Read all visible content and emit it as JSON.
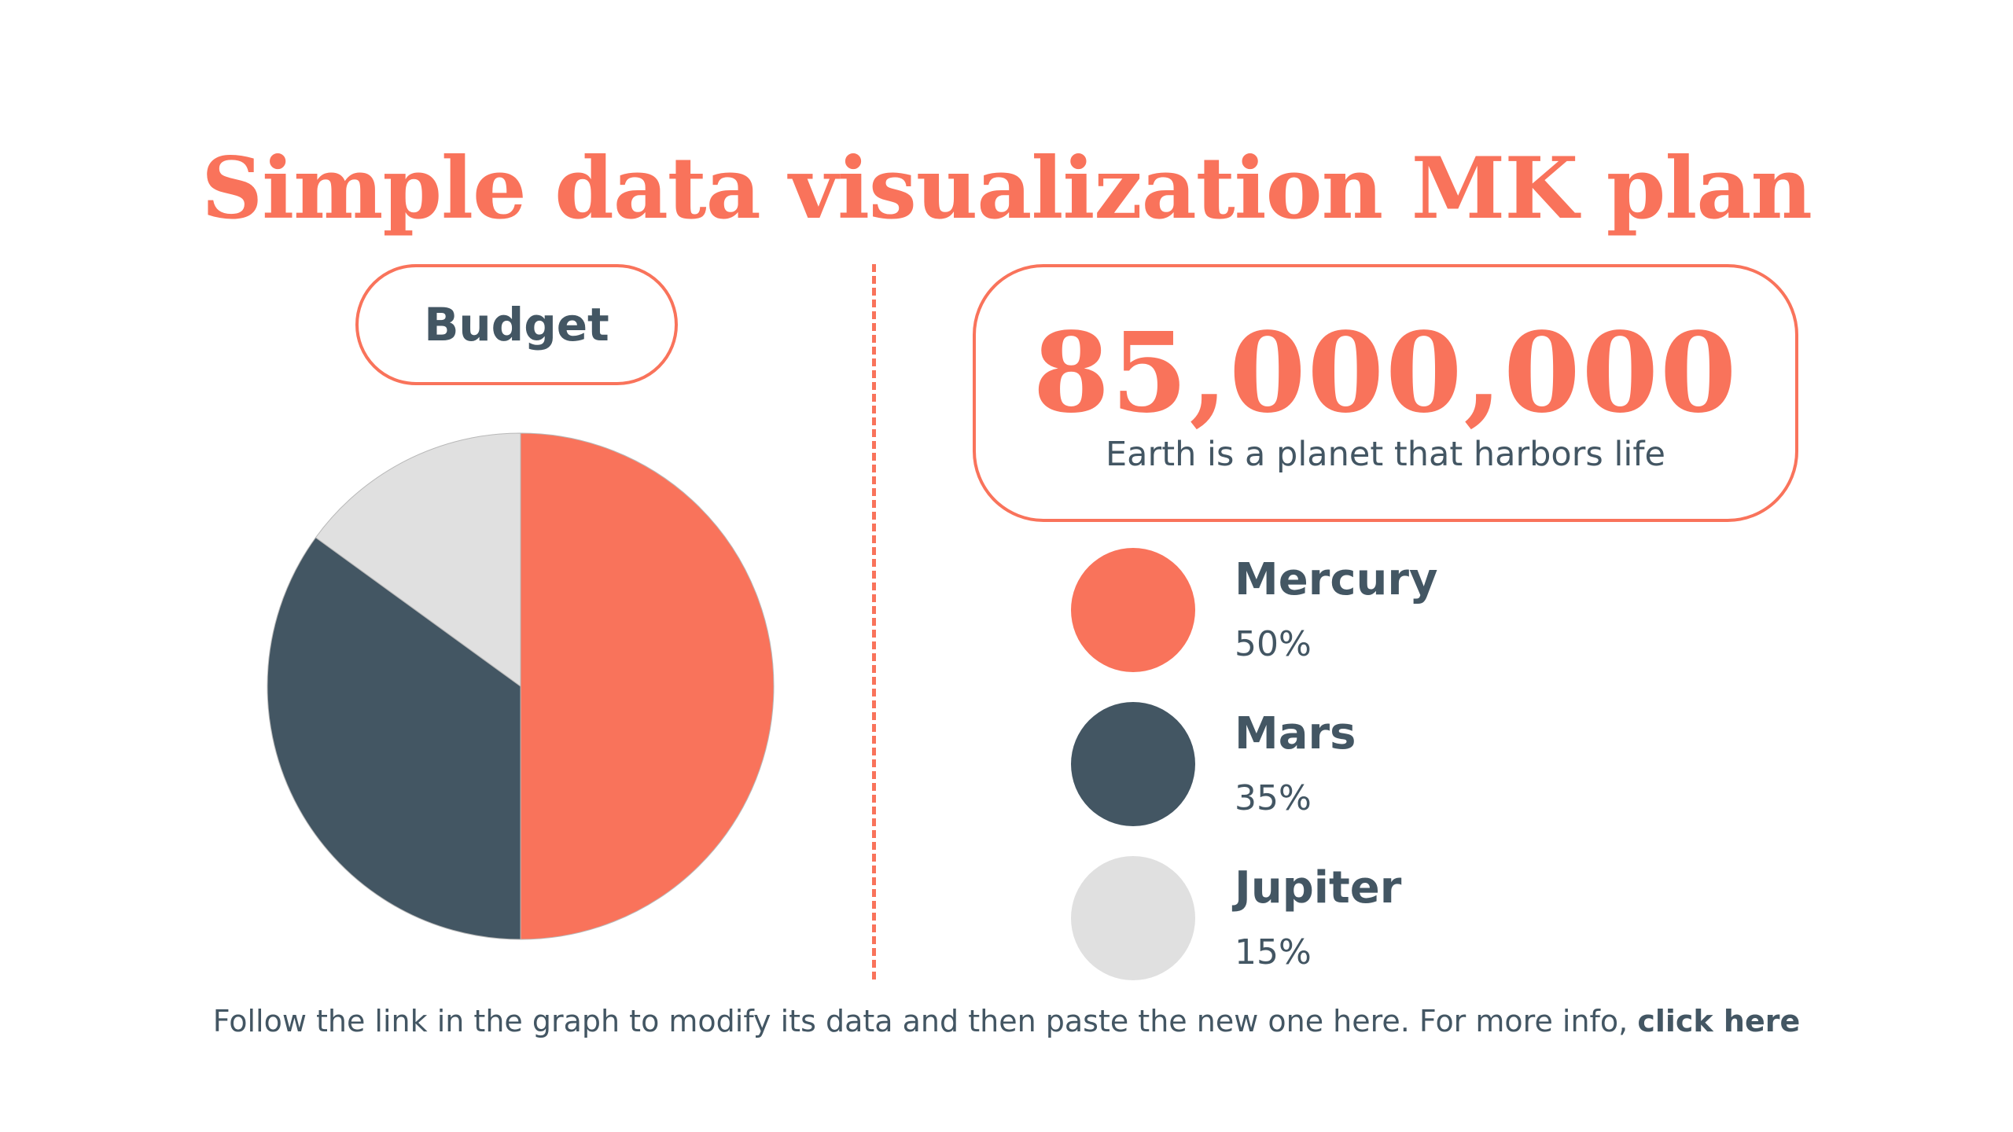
{
  "title": "Simple data visualization MK plan",
  "budget_label": "Budget",
  "stat": {
    "number": "85,000,000",
    "caption": "Earth is a planet that harbors life"
  },
  "legend": [
    {
      "name": "Mercury",
      "value": "50%"
    },
    {
      "name": "Mars",
      "value": "35%"
    },
    {
      "name": "Jupiter",
      "value": "15%"
    }
  ],
  "footer": {
    "text": "Follow the link in the graph to modify its data and then paste the new one here. For more info, ",
    "link_label": "click here"
  },
  "colors": {
    "accent": "#f9735b",
    "dark": "#435663",
    "light": "#e0e0e0"
  },
  "chart_data": {
    "type": "pie",
    "categories": [
      "Mercury",
      "Mars",
      "Jupiter"
    ],
    "values": [
      50,
      35,
      15
    ],
    "colors": [
      "#f9735b",
      "#435663",
      "#e0e0e0"
    ],
    "start": "top",
    "direction": "clockwise",
    "legend": "right"
  }
}
